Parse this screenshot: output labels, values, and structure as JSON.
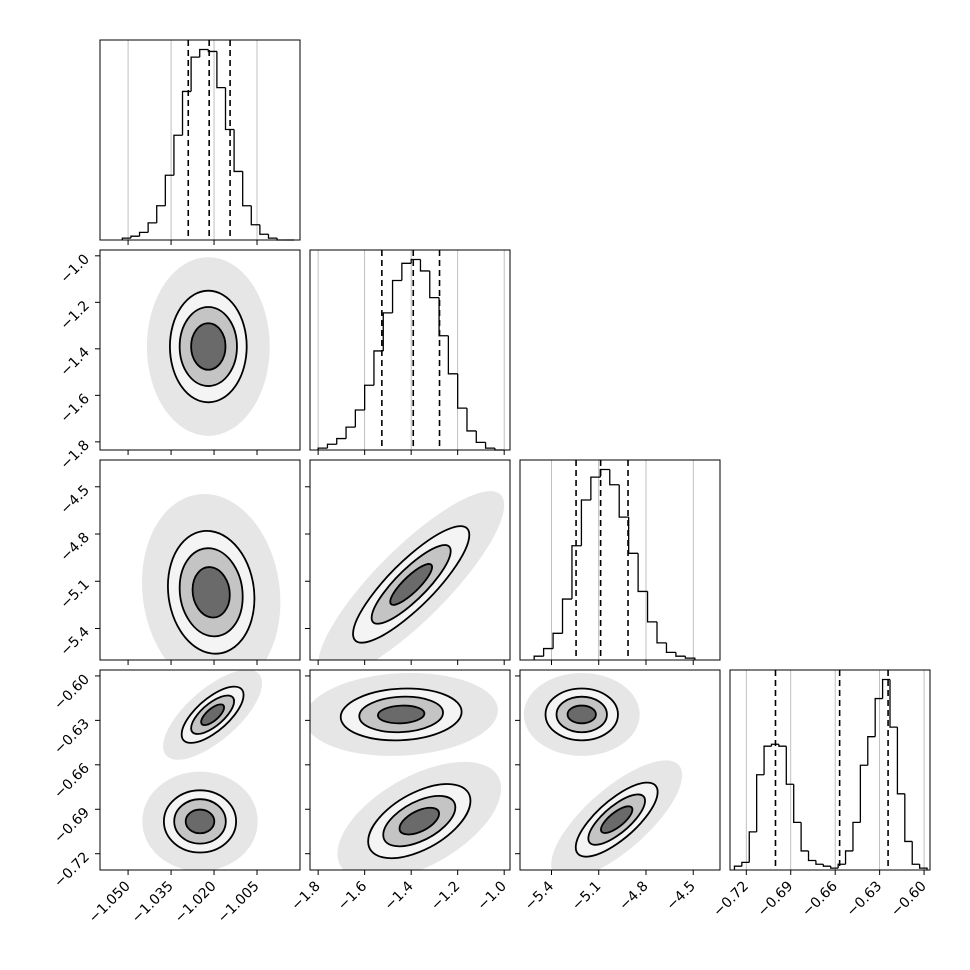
{
  "chart_data": {
    "type": "corner",
    "grid": true,
    "count_lim": [
      0,
      105
    ],
    "params": [
      {
        "lim": [
          -1.0598,
          -0.99
        ],
        "ticks": [
          {
            "value": -1.05,
            "label": "−1.050"
          },
          {
            "value": -1.035,
            "label": "−1.035"
          },
          {
            "value": -1.02,
            "label": "−1.020"
          },
          {
            "value": -1.005,
            "label": "−1.005"
          }
        ],
        "bins": [
          -1.052,
          -1.049,
          -1.046,
          -1.043,
          -1.04,
          -1.037,
          -1.034,
          -1.031,
          -1.028,
          -1.025,
          -1.022,
          -1.019,
          -1.016,
          -1.013,
          -1.01,
          -1.007,
          -1.004,
          -1.001,
          -0.998,
          -0.995,
          -0.992
        ],
        "counts": [
          1,
          2,
          4,
          9,
          18,
          34,
          55,
          78,
          96,
          100,
          99,
          80,
          58,
          36,
          18,
          8,
          3,
          1,
          0,
          0
        ],
        "quantiles": [
          -1.029,
          -1.0217,
          -1.0144
        ],
        "pairs": []
      },
      {
        "lim": [
          -1.835,
          -0.975
        ],
        "ticks": [
          {
            "value": -1.8,
            "label": "−1.8"
          },
          {
            "value": -1.6,
            "label": "−1.6"
          },
          {
            "value": -1.4,
            "label": "−1.4"
          },
          {
            "value": -1.2,
            "label": "−1.2"
          },
          {
            "value": -1.0,
            "label": "−1.0"
          }
        ],
        "bins": [
          -1.8,
          -1.76,
          -1.72,
          -1.68,
          -1.64,
          -1.6,
          -1.56,
          -1.52,
          -1.48,
          -1.44,
          -1.4,
          -1.36,
          -1.32,
          -1.28,
          -1.24,
          -1.2,
          -1.16,
          -1.12,
          -1.08,
          -1.04,
          -1.0
        ],
        "counts": [
          1,
          3,
          6,
          12,
          21,
          34,
          52,
          72,
          89,
          98,
          100,
          94,
          80,
          60,
          40,
          22,
          10,
          4,
          1,
          0
        ],
        "quantiles": [
          -1.526,
          -1.391,
          -1.278
        ],
        "pairs": [
          {
            "clusters": [
              {
                "center": [
                  -1.022,
                  -1.39
                ],
                "rho": 0,
                "contours": [
                  [
                    0.0134,
                    0.24
                  ],
                  [
                    0.01,
                    0.17
                  ],
                  [
                    0.006,
                    0.1
                  ]
                ]
              }
            ]
          }
        ]
      },
      {
        "lim": [
          -5.6,
          -4.33
        ],
        "ticks": [
          {
            "value": -5.4,
            "label": "−5.4"
          },
          {
            "value": -5.1,
            "label": "−5.1"
          },
          {
            "value": -4.8,
            "label": "−4.8"
          },
          {
            "value": -4.5,
            "label": "−4.5"
          }
        ],
        "bins": [
          -5.51,
          -5.45,
          -5.39,
          -5.33,
          -5.27,
          -5.21,
          -5.15,
          -5.09,
          -5.03,
          -4.97,
          -4.91,
          -4.85,
          -4.79,
          -4.73,
          -4.67,
          -4.61,
          -4.55,
          -4.49
        ],
        "counts": [
          2,
          6,
          14,
          32,
          60,
          84,
          96,
          100,
          92,
          75,
          56,
          36,
          20,
          9,
          4,
          2,
          1
        ],
        "quantiles": [
          -5.244,
          -5.088,
          -4.914
        ],
        "pairs": [
          {
            "clusters": [
              {
                "center": [
                  -1.021,
                  -5.17
                ],
                "rho": -0.1,
                "contours": [
                  [
                    0.0151,
                    0.39
                  ],
                  [
                    0.011,
                    0.28
                  ],
                  [
                    0.0065,
                    0.16
                  ]
                ]
              }
            ]
          },
          {
            "clusters": [
              {
                "center": [
                  -1.4,
                  -5.12
                ],
                "rho": 0.85,
                "contours": [
                  [
                    0.25,
                    0.37
                  ],
                  [
                    0.17,
                    0.25
                  ],
                  [
                    0.09,
                    0.13
                  ]
                ]
              }
            ]
          }
        ]
      },
      {
        "lim": [
          -0.731,
          -0.596
        ],
        "ticks": [
          {
            "value": -0.72,
            "label": "−0.72"
          },
          {
            "value": -0.69,
            "label": "−0.69"
          },
          {
            "value": -0.66,
            "label": "−0.66"
          },
          {
            "value": -0.63,
            "label": "−0.63"
          },
          {
            "value": -0.6,
            "label": "−0.60"
          }
        ],
        "bins": [
          -0.728,
          -0.723,
          -0.718,
          -0.713,
          -0.708,
          -0.703,
          -0.698,
          -0.693,
          -0.688,
          -0.683,
          -0.678,
          -0.673,
          -0.668,
          -0.663,
          -0.658,
          -0.653,
          -0.648,
          -0.643,
          -0.638,
          -0.633,
          -0.628,
          -0.623,
          -0.618,
          -0.613,
          -0.608,
          -0.603,
          -0.598
        ],
        "counts": [
          2,
          4,
          20,
          50,
          65,
          66,
          65,
          45,
          25,
          10,
          5,
          3,
          2,
          1,
          3,
          10,
          25,
          55,
          70,
          90,
          100,
          75,
          40,
          15,
          3,
          1
        ],
        "quantiles": [
          -0.7003,
          -0.657,
          -0.6243
        ],
        "pairs": [
          {
            "clusters": [
              {
                "center": [
                  -1.0205,
                  -0.6262
                ],
                "rho": 0.7,
                "contours": [
                  [
                    0.0108,
                    0.019
                  ],
                  [
                    0.0075,
                    0.013
                  ],
                  [
                    0.004,
                    0.007
                  ]
                ]
              },
              {
                "center": [
                  -1.0249,
                  -0.6982
                ],
                "rho": 0,
                "contours": [
                  [
                    0.0126,
                    0.021
                  ],
                  [
                    0.009,
                    0.015
                  ],
                  [
                    0.005,
                    0.008
                  ]
                ]
              }
            ]
          },
          {
            "clusters": [
              {
                "center": [
                  -1.443,
                  -0.626
                ],
                "rho": 0.1,
                "contours": [
                  [
                    0.26,
                    0.0175
                  ],
                  [
                    0.18,
                    0.012
                  ],
                  [
                    0.1,
                    0.006
                  ]
                ]
              },
              {
                "center": [
                  -1.365,
                  -0.698
                ],
                "rho": 0.55,
                "contours": [
                  [
                    0.22,
                    0.025
                  ],
                  [
                    0.155,
                    0.017
                  ],
                  [
                    0.085,
                    0.009
                  ]
                ]
              }
            ]
          },
          {
            "clusters": [
              {
                "center": [
                  -5.208,
                  -0.626
                ],
                "rho": 0,
                "contours": [
                  [
                    0.23,
                    0.0175
                  ],
                  [
                    0.16,
                    0.012
                  ],
                  [
                    0.09,
                    0.006
                  ]
                ]
              },
              {
                "center": [
                  -4.986,
                  -0.697
                ],
                "rho": 0.75,
                "contours": [
                  [
                    0.26,
                    0.025
                  ],
                  [
                    0.18,
                    0.017
                  ],
                  [
                    0.1,
                    0.009
                  ]
                ]
              }
            ]
          }
        ]
      }
    ]
  }
}
